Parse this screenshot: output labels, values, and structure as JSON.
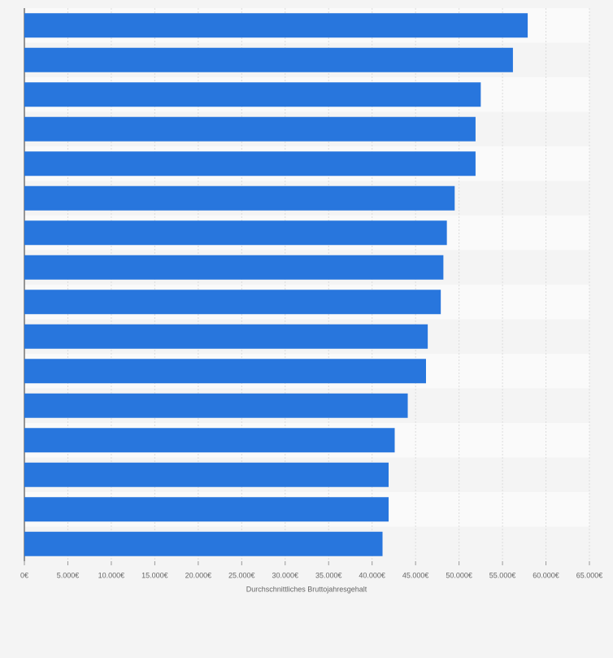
{
  "chart_data": {
    "type": "hbar",
    "xlabel": "Durchschnittliches Bruttojahresgehalt",
    "categories": [
      null,
      null,
      null,
      null,
      null,
      null,
      null,
      null,
      null,
      null,
      null,
      null,
      null,
      null,
      null,
      null
    ],
    "values": [
      57900,
      56200,
      52500,
      51900,
      51900,
      49500,
      48600,
      48200,
      47900,
      46400,
      46200,
      44100,
      42600,
      41900,
      41900,
      41200
    ],
    "color": "#2876dd",
    "xlim": [
      0,
      65000
    ],
    "xticks": [
      {
        "value": 0,
        "label": "0€"
      },
      {
        "value": 5000,
        "label": "5.000€"
      },
      {
        "value": 10000,
        "label": "10.000€"
      },
      {
        "value": 15000,
        "label": "15.000€"
      },
      {
        "value": 20000,
        "label": "20.000€"
      },
      {
        "value": 25000,
        "label": "25.000€"
      },
      {
        "value": 30000,
        "label": "30.000€"
      },
      {
        "value": 35000,
        "label": "35.000€"
      },
      {
        "value": 40000,
        "label": "40.000€"
      },
      {
        "value": 45000,
        "label": "45.000€"
      },
      {
        "value": 50000,
        "label": "50.000€"
      },
      {
        "value": 55000,
        "label": "55.000€"
      },
      {
        "value": 60000,
        "label": "60.000€"
      },
      {
        "value": 65000,
        "label": "65.000€"
      }
    ],
    "grid": true
  }
}
